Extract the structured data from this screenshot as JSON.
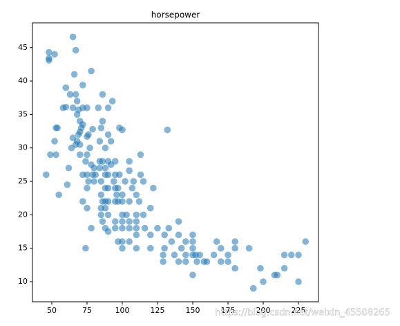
{
  "chart_data": {
    "type": "scatter",
    "title": "horsepower",
    "watermark": "https://blog.csdn.net/weixin_45508265",
    "color": "#1f77b4",
    "alpha": 0.55,
    "grid": false,
    "xlim": [
      36.3,
      239.2
    ],
    "ylim": [
      7.0,
      48.7
    ],
    "xticks": [
      50,
      75,
      100,
      125,
      150,
      175,
      200,
      225
    ],
    "yticks": [
      10,
      15,
      20,
      25,
      30,
      35,
      40,
      45
    ],
    "x": [
      46,
      48,
      48,
      48,
      49,
      52,
      52,
      53,
      53,
      54,
      55,
      58,
      60,
      60,
      61,
      62,
      63,
      64,
      65,
      65,
      65,
      66,
      67,
      67,
      67,
      68,
      68,
      68,
      69,
      69,
      70,
      70,
      70,
      70,
      71,
      72,
      72,
      72,
      72,
      72,
      74,
      74,
      75,
      75,
      75,
      75,
      75,
      75,
      76,
      76,
      77,
      78,
      78,
      78,
      79,
      79,
      80,
      80,
      81,
      83,
      84,
      84,
      84,
      85,
      85,
      85,
      85,
      85,
      86,
      86,
      86,
      86,
      86,
      88,
      88,
      88,
      88,
      88,
      88,
      88,
      90,
      90,
      90,
      90,
      90,
      90,
      90,
      90,
      92,
      92,
      93,
      94,
      95,
      95,
      95,
      95,
      95,
      95,
      96,
      97,
      97,
      97,
      98,
      98,
      100,
      100,
      100,
      100,
      100,
      100,
      100,
      100,
      102,
      103,
      105,
      105,
      105,
      105,
      105,
      105,
      107,
      108,
      110,
      110,
      110,
      110,
      110,
      110,
      112,
      113,
      113,
      115,
      115,
      116,
      120,
      120,
      120,
      122,
      125,
      129,
      129,
      130,
      130,
      132,
      133,
      135,
      137,
      140,
      140,
      140,
      142,
      145,
      145,
      145,
      150,
      150,
      150,
      150,
      150,
      152,
      153,
      155,
      158,
      160,
      165,
      167,
      170,
      170,
      175,
      175,
      180,
      180,
      180,
      190,
      193,
      198,
      200,
      208,
      210,
      215,
      215,
      220,
      225,
      225,
      230
    ],
    "values": [
      26,
      44.3,
      43.4,
      43.1,
      29,
      44,
      31,
      29,
      33,
      33,
      23,
      36,
      39,
      36.1,
      24.5,
      27,
      38,
      30,
      46.6,
      36,
      31.5,
      41,
      44.6,
      30.5,
      38,
      37,
      31,
      35,
      32,
      35.7,
      34,
      29,
      30.5,
      32.4,
      33,
      39.4,
      36,
      26,
      33.5,
      22,
      15,
      28,
      36,
      31.7,
      26,
      21,
      29,
      24,
      32,
      25,
      30,
      41.5,
      27.5,
      18,
      32.8,
      26,
      27,
      25,
      26,
      36,
      28,
      31,
      27,
      33,
      23,
      25,
      21,
      20,
      38,
      34,
      28,
      22,
      19,
      30,
      26,
      24,
      27,
      22,
      21,
      18,
      36,
      32,
      28,
      26,
      24,
      22,
      20,
      17.5,
      31,
      27.5,
      37,
      25,
      28,
      26,
      24,
      22,
      19,
      18,
      23,
      24,
      22,
      16,
      33,
      26,
      32.7,
      23,
      22,
      20,
      18,
      19,
      16,
      15,
      25,
      20,
      28,
      26.6,
      22,
      19,
      18,
      16,
      24,
      25,
      23,
      20,
      19,
      18,
      17,
      15,
      22,
      29,
      26,
      20,
      25,
      18,
      17,
      15,
      21,
      24,
      18,
      14,
      13,
      17,
      15,
      32.7,
      18,
      16,
      14,
      13,
      17,
      19,
      15,
      14,
      16,
      13,
      15,
      14,
      11,
      16,
      17,
      14,
      13,
      14,
      13,
      13,
      14,
      16,
      15,
      13,
      14,
      13,
      16,
      12,
      15,
      15,
      9,
      12,
      10,
      11,
      11,
      14,
      12,
      14,
      14,
      10,
      16
    ]
  }
}
